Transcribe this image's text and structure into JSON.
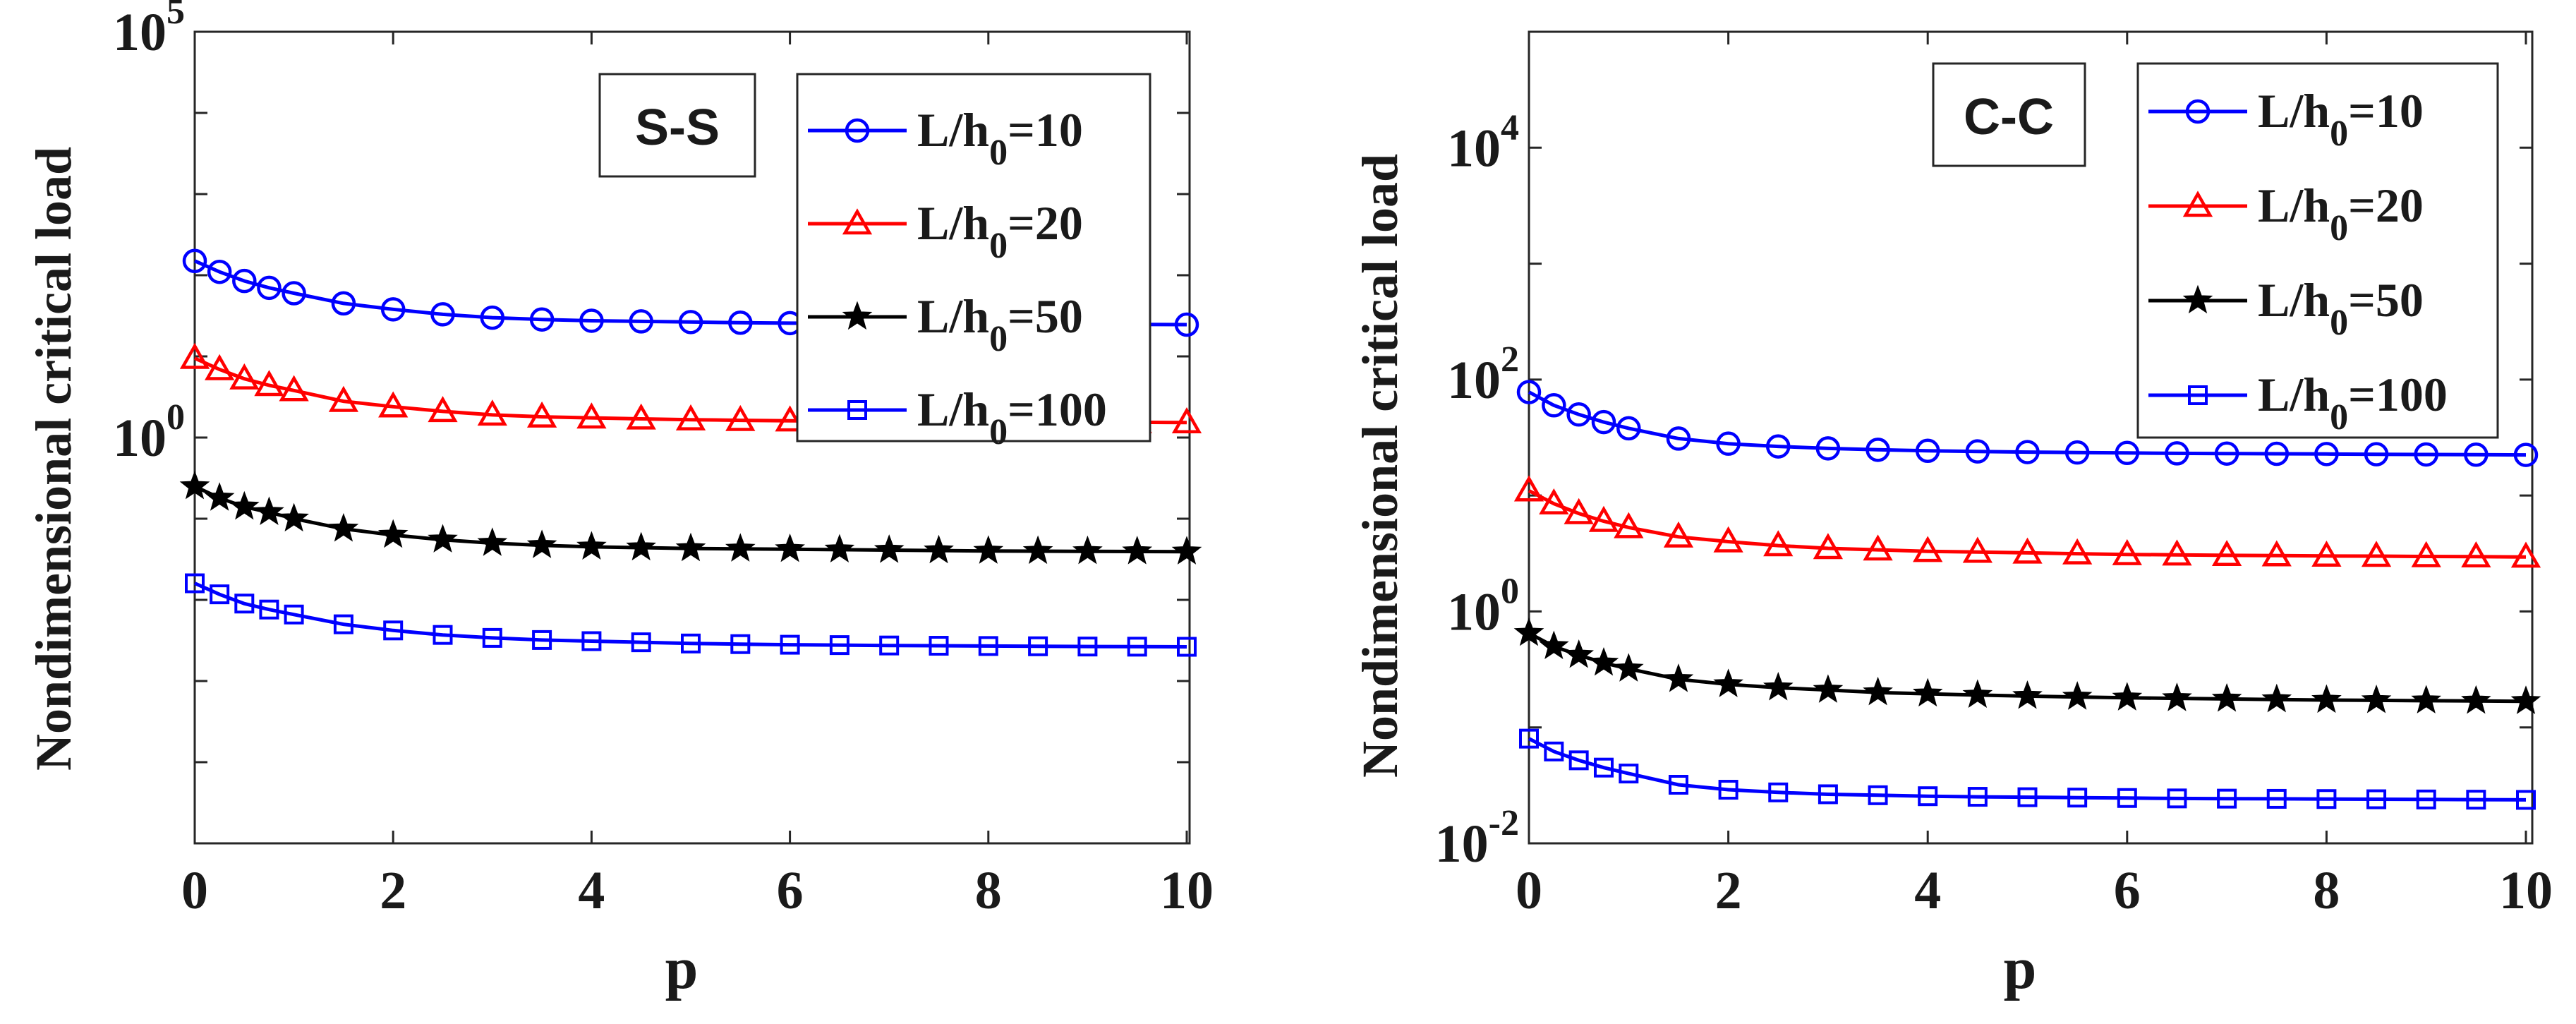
{
  "chart_data": [
    {
      "type": "line",
      "yscale": "log",
      "xlabel": "p",
      "ylabel": "Nondimensional critical load",
      "xlim": [
        0,
        10
      ],
      "ylim": [
        1e-05,
        100000
      ],
      "xticks": [
        0,
        2,
        4,
        6,
        8,
        10
      ],
      "xtick_labels": [
        "0",
        "2",
        "4",
        "6",
        "8",
        "10"
      ],
      "yticks": [
        {
          "value": 100000,
          "base": "10",
          "exp": "5"
        },
        {
          "value": 1,
          "base": "10",
          "exp": "0"
        }
      ],
      "boundary_label": "S-S",
      "legend_position": "top-right",
      "x": [
        0,
        0.25,
        0.5,
        0.75,
        1,
        1.5,
        2,
        2.5,
        3,
        3.5,
        4,
        4.5,
        5,
        5.5,
        6,
        6.5,
        7,
        7.5,
        8,
        8.5,
        9,
        9.5,
        10
      ],
      "series": [
        {
          "name": "L/h0=10",
          "label_main": "L/h",
          "label_sub": "0",
          "label_tail": "=10",
          "color": "#0000ff",
          "marker": "circle",
          "values": [
            150,
            110,
            85,
            70,
            60,
            45,
            38,
            33,
            30,
            28.5,
            27.5,
            27,
            26.5,
            26,
            25.7,
            25.5,
            25.3,
            25.1,
            25,
            24.9,
            24.8,
            24.7,
            24.6
          ]
        },
        {
          "name": "L/h0=20",
          "label_main": "L/h",
          "label_sub": "0",
          "label_tail": "=20",
          "color": "#ff0000",
          "marker": "triangle",
          "values": [
            9.5,
            6.9,
            5.3,
            4.4,
            3.8,
            2.8,
            2.4,
            2.1,
            1.9,
            1.8,
            1.75,
            1.7,
            1.66,
            1.63,
            1.61,
            1.59,
            1.58,
            1.57,
            1.56,
            1.55,
            1.54,
            1.54,
            1.53
          ]
        },
        {
          "name": "L/h0=50",
          "label_main": "L/h",
          "label_sub": "0",
          "label_tail": "=50",
          "color": "#000000",
          "marker": "star",
          "values": [
            0.25,
            0.18,
            0.14,
            0.12,
            0.1,
            0.075,
            0.063,
            0.055,
            0.05,
            0.047,
            0.045,
            0.044,
            0.043,
            0.0425,
            0.042,
            0.0415,
            0.041,
            0.0405,
            0.04,
            0.0398,
            0.0396,
            0.0394,
            0.0392
          ]
        },
        {
          "name": "L/h0=100",
          "label_main": "L/h",
          "label_sub": "0",
          "label_tail": "=100",
          "color": "#0000ff",
          "marker": "square",
          "values": [
            0.016,
            0.0117,
            0.009,
            0.0076,
            0.0066,
            0.005,
            0.0042,
            0.0037,
            0.0034,
            0.0032,
            0.0031,
            0.003,
            0.0029,
            0.00285,
            0.0028,
            0.00277,
            0.00274,
            0.00272,
            0.0027,
            0.00268,
            0.00266,
            0.00265,
            0.00264
          ]
        }
      ]
    },
    {
      "type": "line",
      "yscale": "log",
      "xlabel": "p",
      "ylabel": "Nondimensional critical load",
      "xlim": [
        0,
        10
      ],
      "ylim": [
        0.01,
        100000
      ],
      "xticks": [
        0,
        2,
        4,
        6,
        8,
        10
      ],
      "xtick_labels": [
        "0",
        "2",
        "4",
        "6",
        "8",
        "10"
      ],
      "yticks": [
        {
          "value": 10000,
          "base": "10",
          "exp": "4"
        },
        {
          "value": 100,
          "base": "10",
          "exp": "2"
        },
        {
          "value": 1,
          "base": "10",
          "exp": "0"
        },
        {
          "value": 0.01,
          "base": "10",
          "exp": "-2"
        }
      ],
      "boundary_label": "C-C",
      "legend_position": "top-right",
      "x": [
        0,
        0.25,
        0.5,
        0.75,
        1,
        1.5,
        2,
        2.5,
        3,
        3.5,
        4,
        4.5,
        5,
        5.5,
        6,
        6.5,
        7,
        7.5,
        8,
        8.5,
        9,
        9.5,
        10
      ],
      "series": [
        {
          "name": "L/h0=10",
          "label_main": "L/h",
          "label_sub": "0",
          "label_tail": "=10",
          "color": "#0000ff",
          "marker": "circle",
          "values": [
            78,
            60,
            50,
            43,
            38,
            31,
            28,
            26.5,
            25.5,
            24.8,
            24.3,
            24,
            23.7,
            23.5,
            23.3,
            23.1,
            23,
            22.9,
            22.8,
            22.7,
            22.6,
            22.5,
            22.4
          ]
        },
        {
          "name": "L/h0=20",
          "label_main": "L/h",
          "label_sub": "0",
          "label_tail": "=20",
          "color": "#ff0000",
          "marker": "triangle",
          "values": [
            11,
            8.5,
            7,
            6,
            5.3,
            4.4,
            4,
            3.7,
            3.5,
            3.4,
            3.3,
            3.25,
            3.2,
            3.15,
            3.1,
            3.08,
            3.05,
            3.03,
            3.01,
            3,
            2.98,
            2.97,
            2.95
          ]
        },
        {
          "name": "L/h0=50",
          "label_main": "L/h",
          "label_sub": "0",
          "label_tail": "=50",
          "color": "#000000",
          "marker": "star",
          "values": [
            0.65,
            0.5,
            0.42,
            0.36,
            0.32,
            0.26,
            0.235,
            0.22,
            0.21,
            0.2,
            0.195,
            0.19,
            0.186,
            0.183,
            0.18,
            0.178,
            0.176,
            0.174,
            0.172,
            0.171,
            0.17,
            0.169,
            0.168
          ]
        },
        {
          "name": "L/h0=100",
          "label_main": "L/h",
          "label_sub": "0",
          "label_tail": "=100",
          "color": "#0000ff",
          "marker": "square",
          "values": [
            0.08,
            0.062,
            0.052,
            0.045,
            0.04,
            0.032,
            0.029,
            0.0275,
            0.0265,
            0.026,
            0.0255,
            0.0252,
            0.025,
            0.0248,
            0.0246,
            0.0244,
            0.0243,
            0.0242,
            0.0241,
            0.024,
            0.0239,
            0.0238,
            0.0237
          ]
        }
      ]
    }
  ]
}
